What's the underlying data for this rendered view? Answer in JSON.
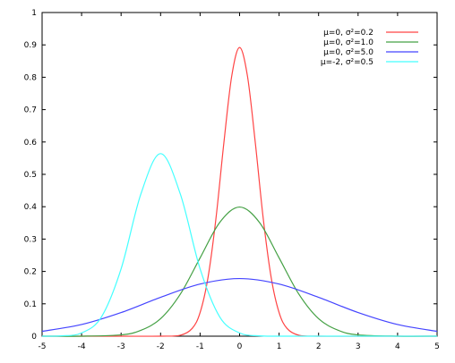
{
  "chart_data": {
    "type": "line",
    "title": "",
    "xlabel": "",
    "ylabel": "",
    "xlim": [
      -5,
      5
    ],
    "ylim": [
      0,
      1
    ],
    "xticks": [
      "-5",
      "-4",
      "-3",
      "-2",
      "-1",
      "0",
      "1",
      "2",
      "3",
      "4",
      "5"
    ],
    "yticks": [
      "0",
      "0.1",
      "0.2",
      "0.3",
      "0.4",
      "0.5",
      "0.6",
      "0.7",
      "0.8",
      "0.9",
      "1"
    ],
    "grid": false,
    "legend_position": "top-right",
    "series": [
      {
        "name": "μ=0, σ²=0.2",
        "color": "#ff4444",
        "x": [
          -5,
          -4,
          -3,
          -2,
          -1.5,
          -1.2,
          -1,
          -0.8,
          -0.6,
          -0.4,
          -0.2,
          0,
          0.2,
          0.4,
          0.6,
          0.8,
          1,
          1.2,
          1.5,
          2,
          3,
          4,
          5
        ],
        "y": [
          0,
          0,
          0,
          0,
          0.003,
          0.024,
          0.073,
          0.181,
          0.362,
          0.595,
          0.803,
          0.892,
          0.803,
          0.595,
          0.362,
          0.181,
          0.073,
          0.024,
          0.003,
          0,
          0,
          0,
          0
        ]
      },
      {
        "name": "μ=0, σ²=1.0",
        "color": "#44a044",
        "x": [
          -5,
          -4,
          -3,
          -2.5,
          -2,
          -1.5,
          -1,
          -0.5,
          0,
          0.5,
          1,
          1.5,
          2,
          2.5,
          3,
          4,
          5
        ],
        "y": [
          0,
          0,
          0.004,
          0.018,
          0.054,
          0.13,
          0.242,
          0.352,
          0.399,
          0.352,
          0.242,
          0.13,
          0.054,
          0.018,
          0.004,
          0,
          0
        ]
      },
      {
        "name": "μ=0, σ²=5.0",
        "color": "#4444ff",
        "x": [
          -5,
          -4,
          -3,
          -2,
          -1,
          0,
          1,
          2,
          3,
          4,
          5
        ],
        "y": [
          0.015,
          0.036,
          0.073,
          0.12,
          0.161,
          0.178,
          0.161,
          0.12,
          0.073,
          0.036,
          0.015
        ]
      },
      {
        "name": "μ=-2, σ²=0.5",
        "color": "#44ffff",
        "x": [
          -5,
          -4.5,
          -4,
          -3.5,
          -3,
          -2.5,
          -2,
          -1.5,
          -1,
          -0.5,
          0,
          0.5,
          1,
          2,
          3,
          4,
          5
        ],
        "y": [
          0,
          0.001,
          0.01,
          0.059,
          0.208,
          0.439,
          0.564,
          0.439,
          0.208,
          0.059,
          0.01,
          0.001,
          0,
          0,
          0,
          0,
          0
        ]
      }
    ]
  }
}
